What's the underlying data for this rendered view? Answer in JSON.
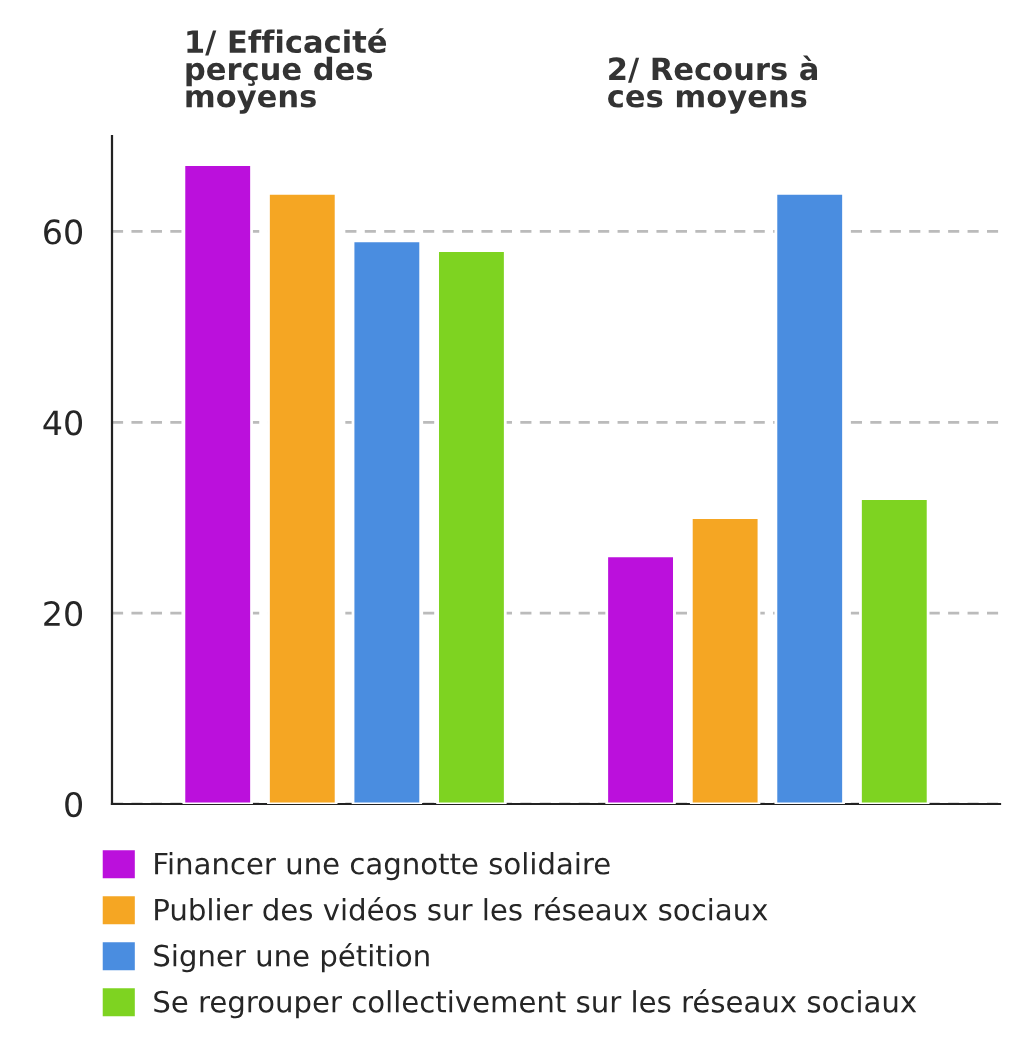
{
  "chart_data": {
    "type": "bar",
    "categories": [
      "1/ Efficacité\nperçue des\nmoyens",
      "2/ Recours à\nces moyens"
    ],
    "series": [
      {
        "name": "Financer une cagnotte solidaire",
        "color": "#bb10dc",
        "values": [
          67,
          26
        ]
      },
      {
        "name": "Publier des vidéos sur les réseaux sociaux",
        "color": "#f5a623",
        "values": [
          64,
          30
        ]
      },
      {
        "name": "Signer une pétition",
        "color": "#4a8de0",
        "values": [
          59,
          64
        ]
      },
      {
        "name": "Se regrouper collectivement sur les réseaux sociaux",
        "color": "#7ed321",
        "values": [
          58,
          32
        ]
      }
    ],
    "ylim": [
      0,
      70
    ],
    "yticks": [
      0,
      20,
      40,
      60
    ],
    "grid": "y",
    "legend": "bottom"
  }
}
